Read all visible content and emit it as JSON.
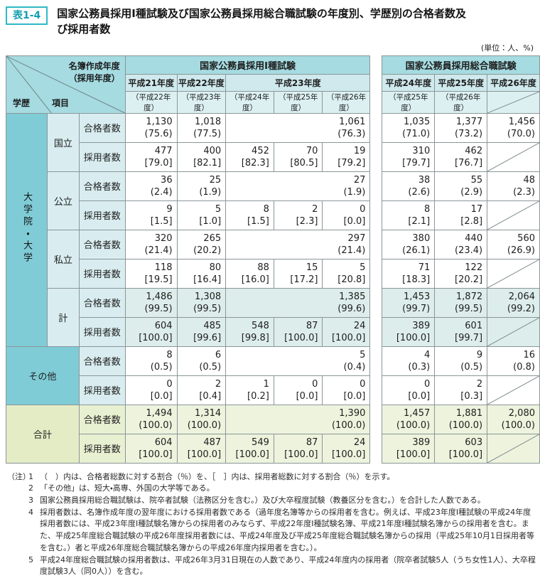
{
  "page": {
    "badge": "表1-4",
    "title": "国家公務員採用Ⅰ種試験及び国家公務員採用総合職試験の年度別、学歴別の合格者数及び採用者数",
    "unit_note": "(単位：人、%)"
  },
  "corner": {
    "diag_top": "名簿作成年度",
    "diag_top2": "（採用年度）",
    "gakureki": "学歴",
    "koumoku": "項目"
  },
  "band_label": "大学院・大学",
  "left_table": {
    "group_title": "国家公務員採用Ⅰ種試験",
    "years": [
      {
        "label": "平成21年度",
        "sub": [
          "（平成22年度）"
        ]
      },
      {
        "label": "平成22年度",
        "sub": [
          "（平成23年度）"
        ]
      },
      {
        "label": "平成23年度",
        "sub": [
          "（平成24年度）",
          "（平成25年度）",
          "（平成26年度）"
        ]
      }
    ]
  },
  "right_table": {
    "group_title": "国家公務員採用総合職試験",
    "years": [
      {
        "label": "平成24年度",
        "sub": [
          "（平成25年度）"
        ]
      },
      {
        "label": "平成25年度",
        "sub": [
          "（平成26年度）"
        ]
      },
      {
        "label": "平成26年度",
        "sub": [
          "diag"
        ]
      }
    ]
  },
  "sections": [
    {
      "label": "国立",
      "type": "univ",
      "rows": [
        {
          "item": "合格者数",
          "left": [
            {
              "v": "1,130",
              "p": "(75.6)"
            },
            {
              "v": "1,018",
              "p": "(77.5)"
            },
            {
              "span": 3,
              "v": "1,061",
              "p": "(76.3)"
            }
          ],
          "right": [
            {
              "v": "1,035",
              "p": "(71.0)"
            },
            {
              "v": "1,377",
              "p": "(73.2)"
            },
            {
              "v": "1,456",
              "p": "(70.0)"
            }
          ]
        },
        {
          "item": "採用者数",
          "left": [
            {
              "v": "477",
              "p": "[79.0]"
            },
            {
              "v": "400",
              "p": "[82.1]"
            },
            {
              "v": "452",
              "p": "[82.3]"
            },
            {
              "v": "70",
              "p": "[80.5]"
            },
            {
              "v": "19",
              "p": "[79.2]"
            }
          ],
          "right": [
            {
              "v": "310",
              "p": "[79.7]"
            },
            {
              "v": "462",
              "p": "[76.7]"
            },
            {
              "diag": true
            }
          ]
        }
      ]
    },
    {
      "label": "公立",
      "type": "univ",
      "rows": [
        {
          "item": "合格者数",
          "left": [
            {
              "v": "36",
              "p": "(2.4)"
            },
            {
              "v": "25",
              "p": "(1.9)"
            },
            {
              "span": 3,
              "v": "27",
              "p": "(1.9)"
            }
          ],
          "right": [
            {
              "v": "38",
              "p": "(2.6)"
            },
            {
              "v": "55",
              "p": "(2.9)"
            },
            {
              "v": "48",
              "p": "(2.3)"
            }
          ]
        },
        {
          "item": "採用者数",
          "left": [
            {
              "v": "9",
              "p": "[1.5]"
            },
            {
              "v": "5",
              "p": "[1.0]"
            },
            {
              "v": "8",
              "p": "[1.5]"
            },
            {
              "v": "2",
              "p": "[2.3]"
            },
            {
              "v": "0",
              "p": "[0.0]"
            }
          ],
          "right": [
            {
              "v": "8",
              "p": "[2.1]"
            },
            {
              "v": "17",
              "p": "[2.8]"
            },
            {
              "diag": true
            }
          ]
        }
      ]
    },
    {
      "label": "私立",
      "type": "univ",
      "rows": [
        {
          "item": "合格者数",
          "left": [
            {
              "v": "320",
              "p": "(21.4)"
            },
            {
              "v": "265",
              "p": "(20.2)"
            },
            {
              "span": 3,
              "v": "297",
              "p": "(21.4)"
            }
          ],
          "right": [
            {
              "v": "380",
              "p": "(26.1)"
            },
            {
              "v": "440",
              "p": "(23.4)"
            },
            {
              "v": "560",
              "p": "(26.9)"
            }
          ]
        },
        {
          "item": "採用者数",
          "left": [
            {
              "v": "118",
              "p": "[19.5]"
            },
            {
              "v": "80",
              "p": "[16.4]"
            },
            {
              "v": "88",
              "p": "[16.0]"
            },
            {
              "v": "15",
              "p": "[17.2]"
            },
            {
              "v": "5",
              "p": "[20.8]"
            }
          ],
          "right": [
            {
              "v": "71",
              "p": "[18.3]"
            },
            {
              "v": "122",
              "p": "[20.2]"
            },
            {
              "diag": true
            }
          ]
        }
      ]
    },
    {
      "label": "計",
      "type": "univ",
      "tint": "teal",
      "rows": [
        {
          "item": "合格者数",
          "left": [
            {
              "v": "1,486",
              "p": "(99.5)"
            },
            {
              "v": "1,308",
              "p": "(99.5)"
            },
            {
              "span": 3,
              "v": "1,385",
              "p": "(99.6)"
            }
          ],
          "right": [
            {
              "v": "1,453",
              "p": "(99.7)"
            },
            {
              "v": "1,872",
              "p": "(99.5)"
            },
            {
              "v": "2,064",
              "p": "(99.2)"
            }
          ]
        },
        {
          "item": "採用者数",
          "left": [
            {
              "v": "604",
              "p": "[100.0]"
            },
            {
              "v": "485",
              "p": "[99.6]"
            },
            {
              "v": "548",
              "p": "[99.8]"
            },
            {
              "v": "87",
              "p": "[100.0]"
            },
            {
              "v": "24",
              "p": "[100.0]"
            }
          ],
          "right": [
            {
              "v": "389",
              "p": "[100.0]"
            },
            {
              "v": "601",
              "p": "[99.7]"
            },
            {
              "diag": true
            }
          ]
        }
      ]
    },
    {
      "label": "その他",
      "type": "other",
      "rows": [
        {
          "item": "合格者数",
          "left": [
            {
              "v": "8",
              "p": "(0.5)"
            },
            {
              "v": "6",
              "p": "(0.5)"
            },
            {
              "span": 3,
              "v": "5",
              "p": "(0.4)"
            }
          ],
          "right": [
            {
              "v": "4",
              "p": "(0.3)"
            },
            {
              "v": "9",
              "p": "(0.5)"
            },
            {
              "v": "16",
              "p": "(0.8)"
            }
          ]
        },
        {
          "item": "採用者数",
          "left": [
            {
              "v": "0",
              "p": "[0.0]"
            },
            {
              "v": "2",
              "p": "[0.4]"
            },
            {
              "v": "1",
              "p": "[0.2]"
            },
            {
              "v": "0",
              "p": "[0.0]"
            },
            {
              "v": "0",
              "p": "[0.0]"
            }
          ],
          "right": [
            {
              "v": "0",
              "p": "[0.0]"
            },
            {
              "v": "2",
              "p": "[0.3]"
            },
            {
              "diag": true
            }
          ]
        }
      ]
    },
    {
      "label": "合計",
      "type": "total",
      "tint": "green",
      "rows": [
        {
          "item": "合格者数",
          "left": [
            {
              "v": "1,494",
              "p": "(100.0)"
            },
            {
              "v": "1,314",
              "p": "(100.0)"
            },
            {
              "span": 3,
              "v": "1,390",
              "p": "(100.0)"
            }
          ],
          "right": [
            {
              "v": "1,457",
              "p": "(100.0)"
            },
            {
              "v": "1,881",
              "p": "(100.0)"
            },
            {
              "v": "2,080",
              "p": "(100.0)"
            }
          ]
        },
        {
          "item": "採用者数",
          "left": [
            {
              "v": "604",
              "p": "[100.0]"
            },
            {
              "v": "487",
              "p": "[100.0]"
            },
            {
              "v": "549",
              "p": "[100.0]"
            },
            {
              "v": "87",
              "p": "[100.0]"
            },
            {
              "v": "24",
              "p": "[100.0]"
            }
          ],
          "right": [
            {
              "v": "389",
              "p": "[100.0]"
            },
            {
              "v": "603",
              "p": "[100.0]"
            },
            {
              "diag": true
            }
          ]
        }
      ]
    }
  ],
  "notes_mark": "（注）",
  "notes": [
    {
      "num": "1",
      "text": "（　）内は、合格者総数に対する割合（％）を、［　］内は、採用者総数に対する割合（％）を示す。"
    },
    {
      "num": "2",
      "text": "「その他」は、短大・高専、外国の大学等である。"
    },
    {
      "num": "3",
      "text": "国家公務員採用総合職試験は、院卒者試験（法務区分を含む。）及び大卒程度試験（教養区分を含む。）を合計した人数である。"
    },
    {
      "num": "4",
      "text": "採用者数は、名簿作成年度の翌年度における採用者数である（過年度名簿等からの採用者を含む。例えば、平成23年度Ⅰ種試験の平成24年度採用者数には、平成23年度Ⅰ種試験名簿からの採用者のみならず、平成22年度Ⅰ種試験名簿、平成21年度Ⅰ種試験名簿からの採用者を含む。また、平成25年度総合職試験の平成26年度採用者数には、平成24年度及び平成25年度総合職試験名簿からの採用（平成25年10月1日採用者等を含む。）者と平成26年度総合職試験名簿からの平成26年度内採用者を含む。）。"
    },
    {
      "num": "5",
      "text": "平成24年度総合職試験の採用者数は、平成26年3月31日現在の人数であり、平成24年度内の採用者（院卒者試験5人（うち女性1人）、大卒程度試験3人（同0人））を含む。"
    }
  ]
}
